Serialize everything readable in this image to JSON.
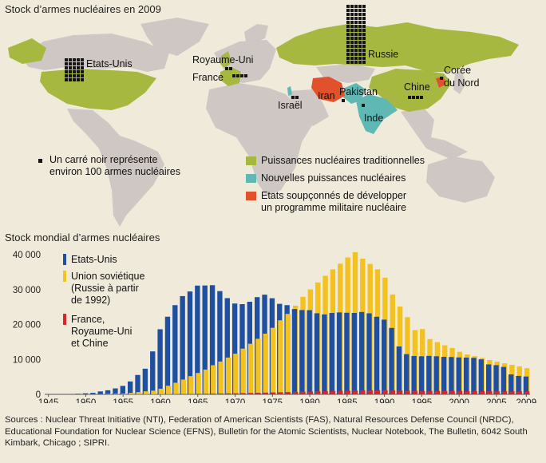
{
  "map": {
    "title": "Stock d’armes nucléaires en 2009",
    "countries": {
      "usa": "Etats-Unis",
      "uk": "Royaume-Uni",
      "france": "France",
      "russia": "Russie",
      "north_korea": [
        "Corée",
        "du Nord"
      ],
      "china": "Chine",
      "pakistan": "Pakistan",
      "iran": "Iran",
      "israel": "Israël",
      "india": "Inde"
    },
    "square_note": [
      "Un carré noir représente",
      "environ 100 armes nucléaires"
    ],
    "legend": {
      "traditional": "Puissances nucléaires traditionnelles",
      "new": "Nouvelles puissances nucléaires",
      "suspected": [
        "Etats soupçonnés de développer",
        "un programme militaire nucléaire"
      ]
    },
    "colors": {
      "ocean": "#f0eadb",
      "land": "#cfc7c4",
      "traditional": "#a6b83f",
      "new": "#5fb8b3",
      "suspected": "#e0512c",
      "square": "#151515"
    }
  },
  "chart_data": {
    "type": "bar",
    "title": "Stock mondial d’armes nucléaires",
    "ylim": [
      0,
      40000
    ],
    "yticks": [
      "0",
      "10 000",
      "20 000",
      "30 000",
      "40 000"
    ],
    "xticks": [
      "1945",
      "1950",
      "1955",
      "1960",
      "1965",
      "1970",
      "1975",
      "1980",
      "1985",
      "1990",
      "1995",
      "2000",
      "2005",
      "2009"
    ],
    "years": [
      1945,
      1946,
      1947,
      1948,
      1949,
      1950,
      1951,
      1952,
      1953,
      1954,
      1955,
      1956,
      1957,
      1958,
      1959,
      1960,
      1961,
      1962,
      1963,
      1964,
      1965,
      1966,
      1967,
      1968,
      1969,
      1970,
      1971,
      1972,
      1973,
      1974,
      1975,
      1976,
      1977,
      1978,
      1979,
      1980,
      1981,
      1982,
      1983,
      1984,
      1985,
      1986,
      1987,
      1988,
      1989,
      1990,
      1991,
      1992,
      1993,
      1994,
      1995,
      1996,
      1997,
      1998,
      1999,
      2000,
      2001,
      2002,
      2003,
      2004,
      2005,
      2006,
      2007,
      2008,
      2009
    ],
    "series": [
      {
        "name": "Etats-Unis",
        "color": "#1f4fa0",
        "values": [
          2,
          9,
          13,
          50,
          170,
          299,
          438,
          841,
          1169,
          1703,
          2422,
          3692,
          5543,
          7345,
          12298,
          18638,
          22229,
          25540,
          28133,
          29463,
          31139,
          31175,
          31255,
          29561,
          27552,
          26008,
          25830,
          26516,
          27835,
          28537,
          27519,
          25914,
          25542,
          24418,
          24138,
          24104,
          23208,
          22886,
          23305,
          23459,
          23368,
          23317,
          23575,
          23205,
          22217,
          21392,
          19008,
          13708,
          11511,
          10979,
          10904,
          11011,
          10903,
          10732,
          10685,
          10577,
          10526,
          10457,
          10027,
          8570,
          8360,
          7853,
          5709,
          5273,
          5113
        ]
      },
      {
        "name": [
          "Union soviétique",
          "(Russie à partir",
          "de 1992)"
        ],
        "color": "#f3c21f",
        "values": [
          0,
          0,
          0,
          0,
          1,
          5,
          25,
          50,
          120,
          150,
          200,
          426,
          660,
          869,
          1060,
          1605,
          2471,
          3322,
          4238,
          5221,
          6129,
          7089,
          8339,
          9399,
          10538,
          11643,
          13092,
          14478,
          15915,
          17385,
          19055,
          21205,
          23044,
          25393,
          27935,
          30062,
          32049,
          33952,
          35804,
          37431,
          39197,
          40723,
          38859,
          37333,
          35805,
          33417,
          28595,
          25155,
          22101,
          18399,
          18699,
          15825,
          14962,
          14040,
          13292,
          12184,
          11419,
          10934,
          10435,
          9816,
          9370,
          8890,
          8466,
          7985,
          7506
        ]
      },
      {
        "name": [
          "France,",
          "Royaume-Uni",
          "et Chine"
        ],
        "color": "#d8262b",
        "values": [
          0,
          0,
          0,
          0,
          0,
          0,
          0,
          0,
          1,
          5,
          10,
          15,
          20,
          22,
          25,
          30,
          50,
          70,
          90,
          110,
          140,
          170,
          200,
          250,
          280,
          300,
          350,
          400,
          450,
          500,
          550,
          600,
          650,
          700,
          750,
          800,
          850,
          900,
          950,
          1000,
          1050,
          1100,
          1150,
          1180,
          1200,
          1200,
          1150,
          1100,
          1050,
          1000,
          950,
          950,
          950,
          950,
          950,
          950,
          900,
          900,
          900,
          900,
          850,
          850,
          850,
          850,
          850
        ]
      }
    ]
  },
  "sources": "Sources : Nuclear Threat Initiative (NTI), Federation of American Scientists (FAS), Natural Resources Defense Council (NRDC), Educational Foundation for Nuclear Science (EFNS), Bulletin for the Atomic Scientists, Nuclear Notebook, The Bulletin, 6042 South Kimbark, Chicago ; SIPRI."
}
